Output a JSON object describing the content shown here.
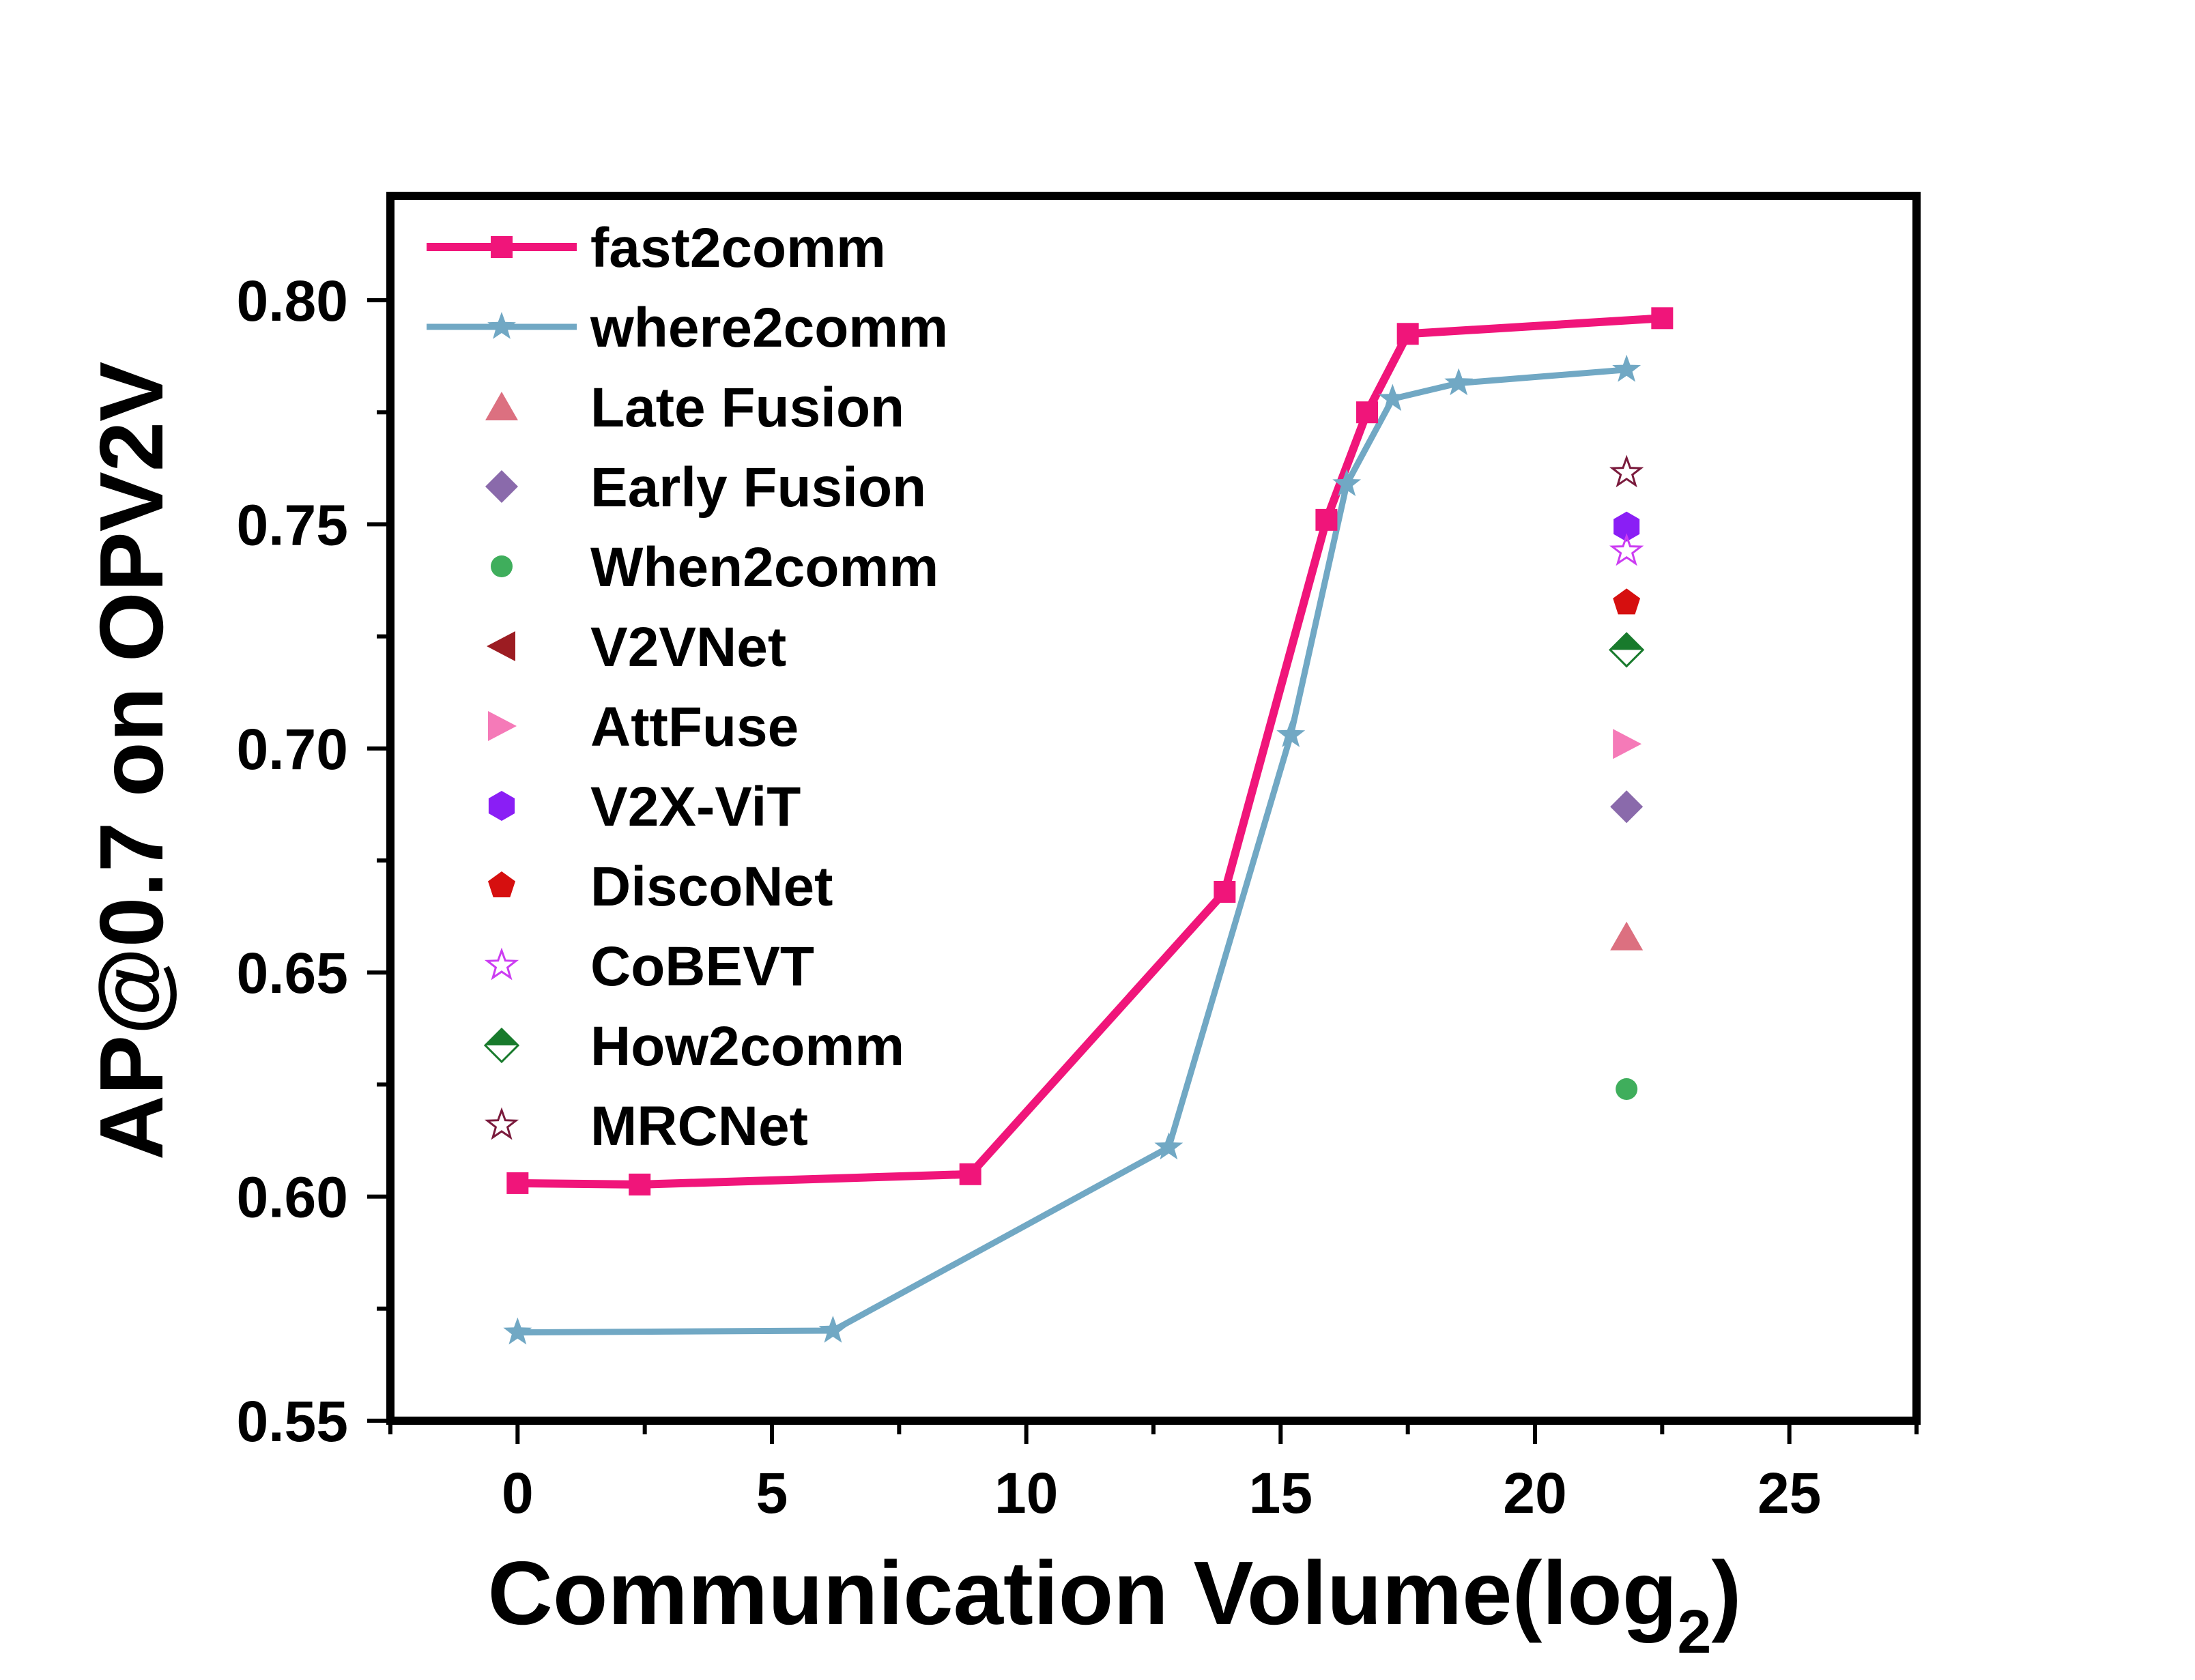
{
  "chart_data": {
    "type": "line",
    "title": "",
    "xlabel": "Communication Volume(log",
    "xlabel_subscript": "2",
    "xlabel_close": ")",
    "ylabel": "AP@0.7 on OPV2V",
    "xlim": [
      -2.5,
      27.5
    ],
    "ylim": [
      0.55,
      0.8233
    ],
    "x_ticks": [
      0,
      5,
      10,
      15,
      20,
      25
    ],
    "x_tick_labels": [
      "0",
      "5",
      "10",
      "15",
      "20",
      "25"
    ],
    "y_ticks": [
      0.55,
      0.6,
      0.65,
      0.7,
      0.75,
      0.8
    ],
    "y_tick_labels": [
      "0.55",
      "0.60",
      "0.65",
      "0.70",
      "0.75",
      "0.80"
    ],
    "grid": false,
    "legend_position": "top-left",
    "series": [
      {
        "name": "fast2comm",
        "color": "#f0157a",
        "marker": "square",
        "line": true,
        "x": [
          0,
          2.4,
          8.9,
          13.9,
          15.9,
          16.7,
          17.5,
          22.5
        ],
        "y": [
          0.603,
          0.6027,
          0.605,
          0.668,
          0.751,
          0.775,
          0.7925,
          0.796
        ]
      },
      {
        "name": "where2comm",
        "color": "#71a8c4",
        "marker": "star",
        "line": true,
        "x": [
          0,
          6.2,
          12.8,
          15.2,
          16.3,
          17.2,
          18.5,
          21.8
        ],
        "y": [
          0.5697,
          0.5701,
          0.611,
          0.703,
          0.759,
          0.778,
          0.7815,
          0.7845
        ]
      },
      {
        "name": "Late Fusion",
        "color": "#dc7080",
        "marker": "triangle-up",
        "line": false,
        "x": [
          21.8
        ],
        "y": [
          0.658
        ]
      },
      {
        "name": "Early Fusion",
        "color": "#8a6aab",
        "marker": "diamond",
        "line": false,
        "x": [
          21.8
        ],
        "y": [
          0.687
        ]
      },
      {
        "name": "When2comm",
        "color": "#3fae5c",
        "marker": "circle",
        "line": false,
        "x": [
          21.8
        ],
        "y": [
          0.624
        ]
      },
      {
        "name": "V2VNet",
        "color": "#9c1c22",
        "marker": "triangle-left",
        "line": false,
        "x": [],
        "y": []
      },
      {
        "name": "AttFuse",
        "color": "#f57ab8",
        "marker": "triangle-right",
        "line": false,
        "x": [
          21.8
        ],
        "y": [
          0.701
        ]
      },
      {
        "name": "V2X-ViT",
        "color": "#8a1ef5",
        "marker": "hexagon",
        "line": false,
        "x": [
          21.8
        ],
        "y": [
          0.7495
        ]
      },
      {
        "name": "DiscoNet",
        "color": "#d60f0f",
        "marker": "pentagon",
        "line": false,
        "x": [
          21.8
        ],
        "y": [
          0.7325
        ]
      },
      {
        "name": "CoBEVT",
        "color": "#cc3cf2",
        "marker": "star-open",
        "line": false,
        "x": [
          21.8
        ],
        "y": [
          0.744
        ]
      },
      {
        "name": "How2comm",
        "color": "#187a2c",
        "marker": "diamond-half",
        "line": false,
        "x": [
          21.8
        ],
        "y": [
          0.722
        ]
      },
      {
        "name": "MRCNet",
        "color": "#7a1a3c",
        "marker": "star-open",
        "line": false,
        "x": [
          21.8
        ],
        "y": [
          0.7615
        ]
      }
    ]
  }
}
